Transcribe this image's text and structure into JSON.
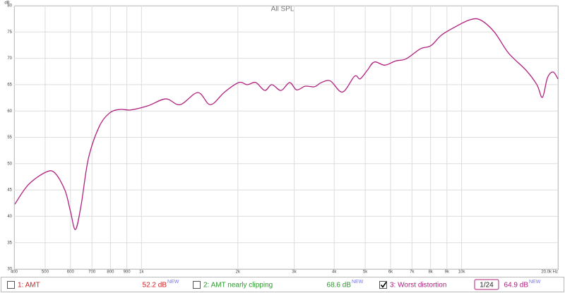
{
  "chart_data": {
    "type": "line",
    "title": "All SPL",
    "y_unit": "dB",
    "log_x": true,
    "grid": true,
    "xlim": [
      400,
      20000
    ],
    "ylim": [
      30,
      80
    ],
    "xticks": [
      400,
      500,
      600,
      700,
      800,
      900,
      {
        "value": 1000,
        "label": "1k"
      },
      {
        "value": 2000,
        "label": "2k"
      },
      {
        "value": 3000,
        "label": "3k"
      },
      {
        "value": 4000,
        "label": "4k"
      },
      {
        "value": 5000,
        "label": "5k"
      },
      {
        "value": 6000,
        "label": "6k"
      },
      {
        "value": 7000,
        "label": "7k"
      },
      {
        "value": 8000,
        "label": "8k"
      },
      {
        "value": 9000,
        "label": "9k"
      },
      {
        "value": 10000,
        "label": "10k"
      },
      {
        "value": 20000,
        "label": "20.0k Hz"
      }
    ],
    "yticks": [
      30,
      35,
      40,
      45,
      50,
      55,
      60,
      65,
      70,
      75,
      80
    ],
    "x": [
      402,
      443,
      503,
      537,
      577,
      600,
      622,
      648,
      682,
      736,
      794,
      857,
      925,
      1049,
      1191,
      1320,
      1500,
      1641,
      1818,
      2013,
      2140,
      2275,
      2427,
      2553,
      2728,
      2903,
      3052,
      3245,
      3467,
      3648,
      3892,
      4245,
      4630,
      4820,
      5072,
      5336,
      5755,
      6219,
      6712,
      7432,
      8019,
      8654,
      9573,
      10608,
      11434,
      12656,
      14015,
      15920,
      17187,
      17889,
      18545,
      19317,
      20000
    ],
    "series": [
      {
        "name": "1: AMT",
        "color": "#d42020",
        "checked": false,
        "reading": {
          "value": 52.2,
          "label": "52.2 dB"
        },
        "badge": "NEW"
      },
      {
        "name": "2: AMT nearly clipping",
        "color": "#2a9a2a",
        "checked": false,
        "reading": {
          "value": 68.6,
          "label": "68.6 dB"
        },
        "badge": "NEW"
      },
      {
        "name": "3: Worst distortion",
        "color": "#b0207e",
        "checked": true,
        "smoothing": "1/24",
        "reading": {
          "value": 64.9,
          "label": "64.9 dB"
        },
        "badge": "NEW",
        "values": [
          42.3,
          46,
          48.4,
          48.2,
          44.9,
          40.9,
          37.5,
          42.2,
          50.9,
          56.9,
          59.6,
          60.3,
          60.2,
          61,
          62.3,
          61.2,
          63.5,
          61.2,
          63.6,
          65.4,
          65,
          65.4,
          63.9,
          65,
          63.9,
          65.4,
          64,
          64.7,
          64.6,
          65.4,
          65.7,
          63.6,
          66.6,
          66.1,
          67.7,
          69.3,
          68.7,
          69.5,
          69.9,
          71.8,
          72.4,
          74.4,
          76,
          77.3,
          77.3,
          75,
          71,
          67.7,
          65,
          62.6,
          66.3,
          67.4,
          66.1
        ]
      }
    ]
  }
}
